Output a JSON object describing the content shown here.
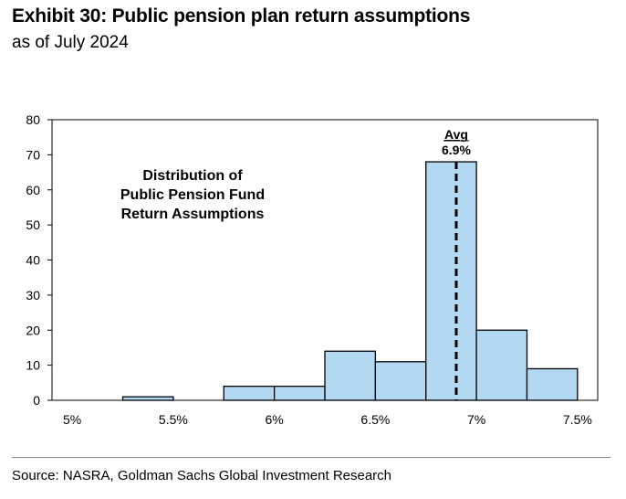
{
  "header": {
    "title": "Exhibit 30: Public pension plan return assumptions",
    "subtitle": "as of July 2024"
  },
  "footer": {
    "source": "Source: NASRA, Goldman Sachs Global Investment Research"
  },
  "chart_data": {
    "type": "bar",
    "title": "",
    "xlabel": "",
    "ylabel": "",
    "ylim": [
      0,
      80
    ],
    "y_ticks": [
      "0",
      "10",
      "20",
      "30",
      "40",
      "50",
      "60",
      "70",
      "80"
    ],
    "x_range": [
      4.9,
      7.6
    ],
    "x_ticks": [
      {
        "value": 5.0,
        "label": "5%"
      },
      {
        "value": 5.5,
        "label": "5.5%"
      },
      {
        "value": 6.0,
        "label": "6%"
      },
      {
        "value": 6.5,
        "label": "6.5%"
      },
      {
        "value": 7.0,
        "label": "7%"
      },
      {
        "value": 7.5,
        "label": "7.5%"
      }
    ],
    "bins": [
      {
        "start": 5.0,
        "end": 5.25,
        "count": 0
      },
      {
        "start": 5.25,
        "end": 5.5,
        "count": 1
      },
      {
        "start": 5.5,
        "end": 5.75,
        "count": 0
      },
      {
        "start": 5.75,
        "end": 6.0,
        "count": 4
      },
      {
        "start": 6.0,
        "end": 6.25,
        "count": 4
      },
      {
        "start": 6.25,
        "end": 6.5,
        "count": 14
      },
      {
        "start": 6.5,
        "end": 6.75,
        "count": 11
      },
      {
        "start": 6.75,
        "end": 7.0,
        "count": 68
      },
      {
        "start": 7.0,
        "end": 7.25,
        "count": 20
      },
      {
        "start": 7.25,
        "end": 7.5,
        "count": 9
      },
      {
        "start": 7.5,
        "end": 7.75,
        "count": 0
      }
    ],
    "annotation": {
      "lines": [
        "Distribution of",
        "Public Pension Fund",
        "Return Assumptions"
      ]
    },
    "average": {
      "value": 6.9,
      "label_top": "Avg",
      "label_bottom": "6.9%"
    },
    "colors": {
      "bar_fill": "#b3d9f2",
      "bar_stroke": "#000000",
      "avg_line": "#000000"
    }
  }
}
